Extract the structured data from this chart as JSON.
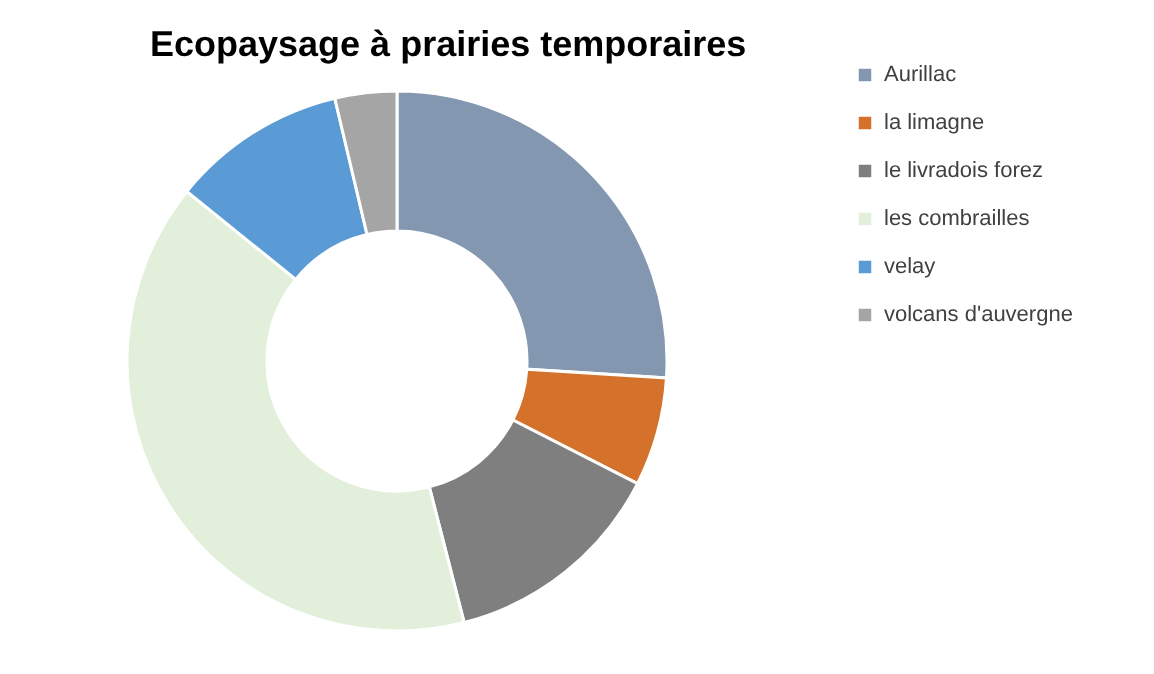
{
  "chart_data": {
    "type": "donut",
    "title": "Ecopaysage à prairies temporaires",
    "categories": [
      "Aurillac",
      "la limagne",
      "le livradois forez",
      "les combrailles",
      "velay",
      "volcans d'auvergne"
    ],
    "values": [
      26,
      6.5,
      13.5,
      39.8,
      10.5,
      3.7
    ],
    "colors": [
      "#8497b0",
      "#d4712b",
      "#7f7f7f",
      "#e2efda",
      "#5b9bd5",
      "#a5a5a5"
    ],
    "legend": "right"
  }
}
